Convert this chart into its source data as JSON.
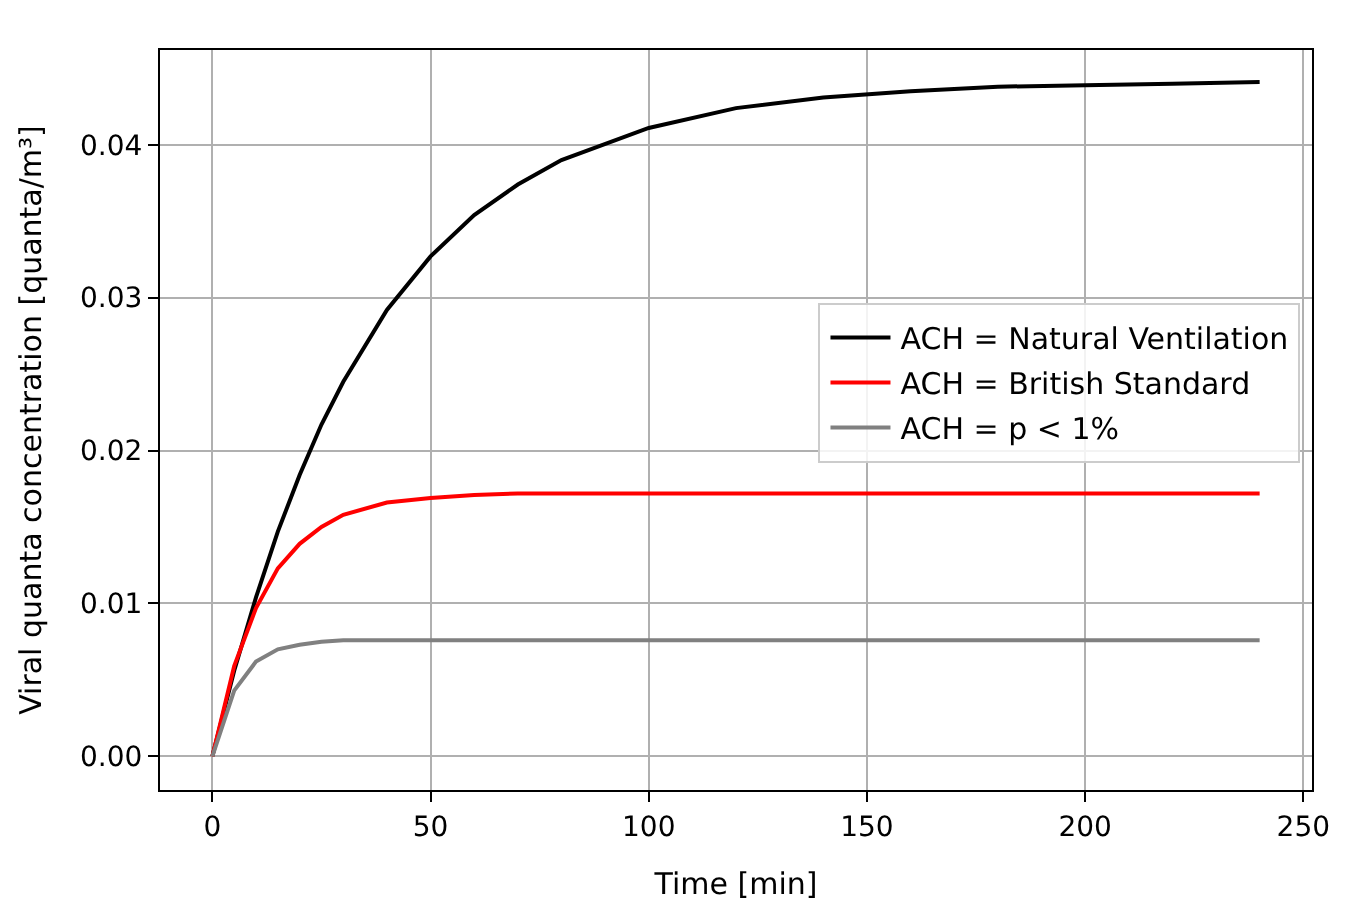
{
  "chart_data": {
    "type": "line",
    "xlabel": "Time [min]",
    "ylabel": "Viral quanta concentration [quanta/m³]",
    "x": [
      0,
      5,
      10,
      15,
      20,
      25,
      30,
      40,
      50,
      60,
      70,
      80,
      100,
      120,
      140,
      160,
      180,
      200,
      220,
      240
    ],
    "series": [
      {
        "name": "ACH = Natural Ventilation",
        "color": "#000000",
        "values": [
          0,
          0.0056,
          0.0104,
          0.0147,
          0.0184,
          0.0217,
          0.0245,
          0.0292,
          0.0327,
          0.0354,
          0.0374,
          0.039,
          0.0411,
          0.0424,
          0.0431,
          0.0435,
          0.0438,
          0.0439,
          0.044,
          0.0441
        ]
      },
      {
        "name": "ACH = British Standard",
        "color": "#ff0000",
        "values": [
          0,
          0.0059,
          0.0097,
          0.0123,
          0.0139,
          0.015,
          0.0158,
          0.0166,
          0.0169,
          0.0171,
          0.0172,
          0.0172,
          0.0172,
          0.0172,
          0.0172,
          0.0172,
          0.0172,
          0.0172,
          0.0172,
          0.0172
        ]
      },
      {
        "name": "ACH = p < 1%",
        "color": "#808080",
        "values": [
          0,
          0.0043,
          0.0062,
          0.007,
          0.0073,
          0.0075,
          0.0076,
          0.0076,
          0.0076,
          0.0076,
          0.0076,
          0.0076,
          0.0076,
          0.0076,
          0.0076,
          0.0076,
          0.0076,
          0.0076,
          0.0076,
          0.0076
        ]
      }
    ],
    "xlim": [
      -12,
      252
    ],
    "xticks": [
      0,
      50,
      100,
      150,
      200,
      250
    ],
    "ylim": [
      -0.0022,
      0.0462
    ],
    "yticks": [
      {
        "value": 0,
        "label": "0.00"
      },
      {
        "value": 0.01,
        "label": "0.01"
      },
      {
        "value": 0.02,
        "label": "0.02"
      },
      {
        "value": 0.03,
        "label": "0.03"
      },
      {
        "value": 0.04,
        "label": "0.04"
      }
    ],
    "grid": true,
    "legend": "right",
    "line_style": "solid",
    "marker": "none"
  }
}
